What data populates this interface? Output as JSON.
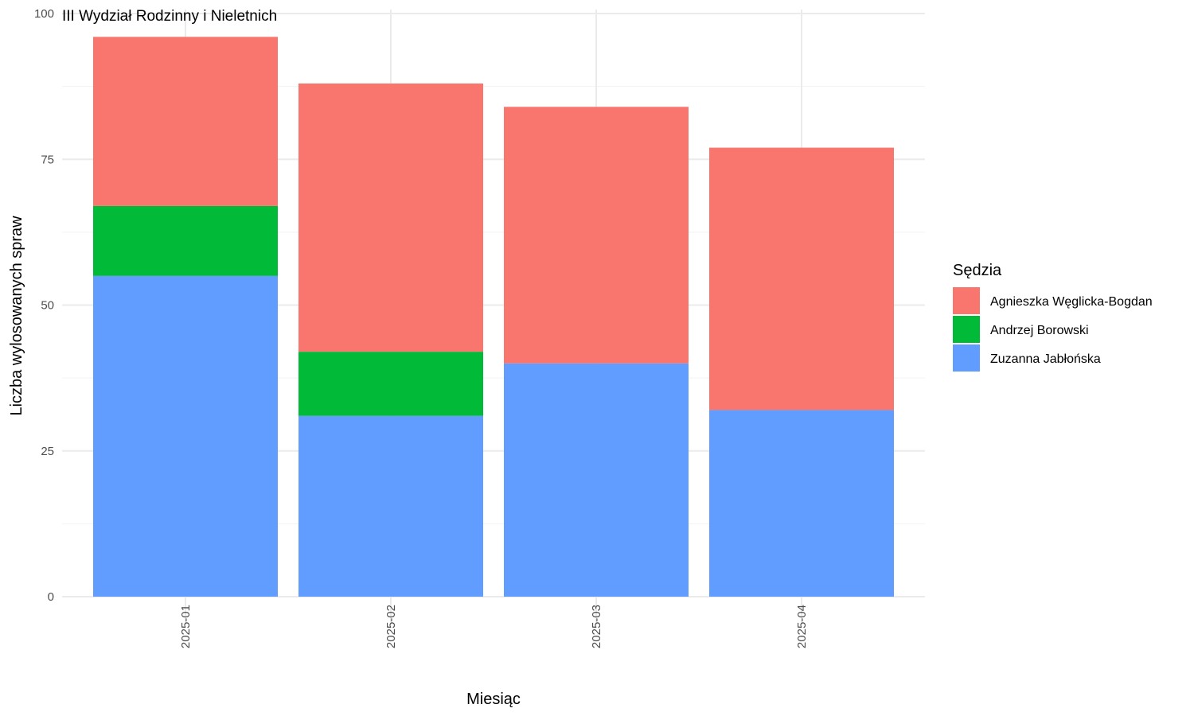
{
  "chart_data": {
    "type": "bar",
    "stacked": true,
    "title": "III Wydział Rodzinny i Nieletnich",
    "xlabel": "Miesiąc",
    "ylabel": "Liczba wylosowanych spraw",
    "ylim": [
      0,
      100
    ],
    "yticks": [
      "0",
      "25",
      "50",
      "75",
      "100"
    ],
    "grid": true,
    "legend_title": "Sędzia",
    "legend_position": "right",
    "categories": [
      "2025-01",
      "2025-02",
      "2025-03",
      "2025-04"
    ],
    "series": [
      {
        "name": "Zuzanna Jabłońska",
        "color": "#619CFF",
        "values": [
          55,
          31,
          40,
          32
        ]
      },
      {
        "name": "Andrzej Borowski",
        "color": "#00BA38",
        "values": [
          12,
          11,
          0,
          0
        ]
      },
      {
        "name": "Agnieszka Węglicka-Bogdan",
        "color": "#F8766D",
        "values": [
          29,
          46,
          44,
          45
        ]
      }
    ],
    "legend_order": [
      "Agnieszka Węglicka-Bogdan",
      "Andrzej Borowski",
      "Zuzanna Jabłońska"
    ]
  }
}
